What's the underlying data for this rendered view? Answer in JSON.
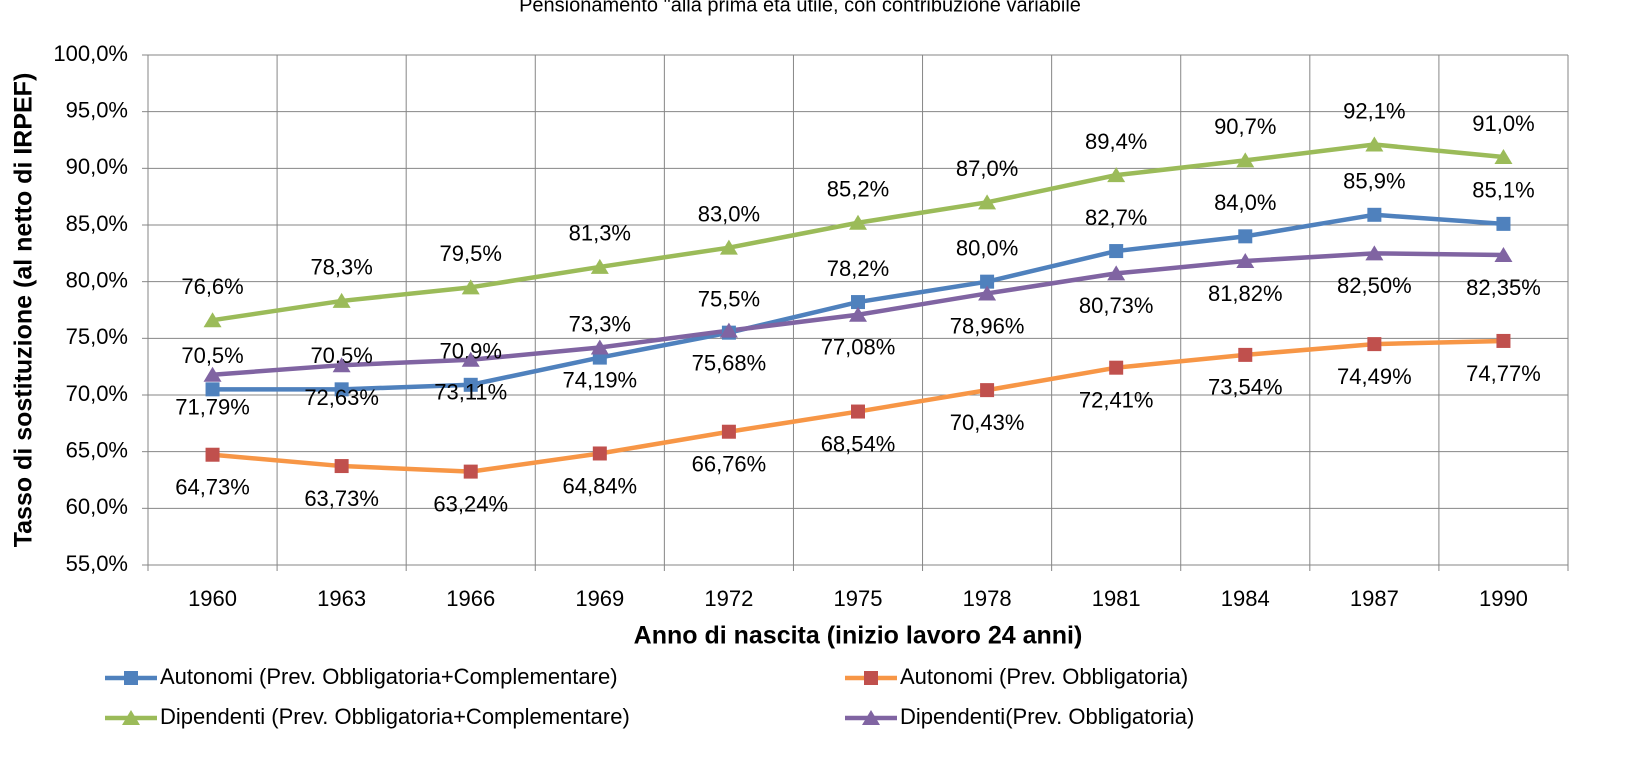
{
  "chart_data": {
    "type": "line",
    "title": "Pensionamento \"alla prima età utile, con contribuzione variabile",
    "x_label": "Anno di nascita (inizio lavoro 24 anni)",
    "y_label": "Tasso di sostituzione (al netto di IRPEF)",
    "categories": [
      "1960",
      "1963",
      "1966",
      "1969",
      "1972",
      "1975",
      "1978",
      "1981",
      "1984",
      "1987",
      "1990"
    ],
    "ylim": [
      55,
      100
    ],
    "yticks": [
      {
        "value": 55,
        "label": "55,0%"
      },
      {
        "value": 60,
        "label": "60,0%"
      },
      {
        "value": 65,
        "label": "65,0%"
      },
      {
        "value": 70,
        "label": "70,0%"
      },
      {
        "value": 75,
        "label": "75,0%"
      },
      {
        "value": 80,
        "label": "80,0%"
      },
      {
        "value": 85,
        "label": "85,0%"
      },
      {
        "value": 90,
        "label": "90,0%"
      },
      {
        "value": 95,
        "label": "95,0%"
      },
      {
        "value": 100,
        "label": "100,0%"
      }
    ],
    "grid": true,
    "legend": "bottom",
    "series": [
      {
        "name": "Autonomi (Prev. Obbligatoria+Complementare)",
        "color": "#4f81bd",
        "marker": "square",
        "label_position": "above",
        "values": [
          70.5,
          70.5,
          70.9,
          73.3,
          75.5,
          78.2,
          80.0,
          82.7,
          84.0,
          85.9,
          85.1
        ],
        "value_labels": [
          "70,5%",
          "70,5%",
          "70,9%",
          "73,3%",
          "75,5%",
          "78,2%",
          "80,0%",
          "82,7%",
          "84,0%",
          "85,9%",
          "85,1%"
        ]
      },
      {
        "name": "Autonomi (Prev. Obbligatoria)",
        "color": "#f79646",
        "marker": "square",
        "marker_color": "#c0504d",
        "label_position": "below",
        "values": [
          64.73,
          63.73,
          63.24,
          64.84,
          66.76,
          68.54,
          70.43,
          72.41,
          73.54,
          74.49,
          74.77
        ],
        "value_labels": [
          "64,73%",
          "63,73%",
          "63,24%",
          "64,84%",
          "66,76%",
          "68,54%",
          "70,43%",
          "72,41%",
          "73,54%",
          "74,49%",
          "74,77%"
        ]
      },
      {
        "name": "Dipendenti (Prev. Obbligatoria+Complementare)",
        "color": "#9bbb59",
        "marker": "triangle",
        "label_position": "above",
        "values": [
          76.6,
          78.3,
          79.5,
          81.3,
          83.0,
          85.2,
          87.0,
          89.4,
          90.7,
          92.1,
          91.0
        ],
        "value_labels": [
          "76,6%",
          "78,3%",
          "79,5%",
          "81,3%",
          "83,0%",
          "85,2%",
          "87,0%",
          "89,4%",
          "90,7%",
          "92,1%",
          "91,0%"
        ]
      },
      {
        "name": "Dipendenti(Prev. Obbligatoria)",
        "color": "#8064a2",
        "marker": "triangle",
        "label_position": "below",
        "values": [
          71.79,
          72.63,
          73.11,
          74.19,
          75.68,
          77.08,
          78.96,
          80.73,
          81.82,
          82.5,
          82.35
        ],
        "value_labels": [
          "71,79%",
          "72,63%",
          "73,11%",
          "74,19%",
          "75,68%",
          "77,08%",
          "78,96%",
          "80,73%",
          "81,82%",
          "82,50%",
          "82,35%"
        ]
      }
    ]
  }
}
